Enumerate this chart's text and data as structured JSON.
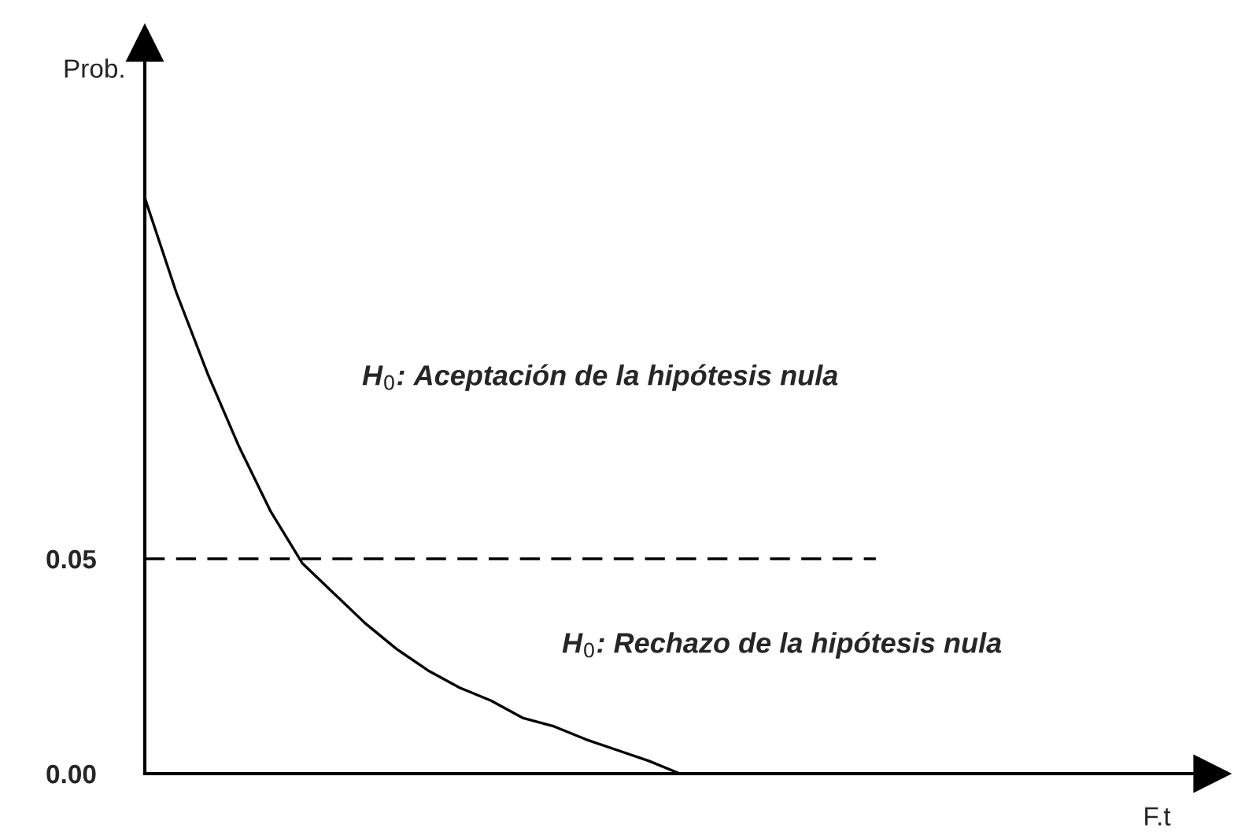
{
  "chart_data": {
    "type": "line",
    "xlabel": "F.t",
    "ylabel": "Prob.",
    "categories": [
      null,
      null,
      null,
      null,
      null,
      null,
      null,
      null,
      null,
      null,
      null,
      null,
      null,
      null,
      null,
      null,
      null,
      null,
      null,
      null,
      null,
      null,
      null,
      null,
      null,
      null,
      null,
      null,
      null,
      null,
      null,
      null,
      null,
      null,
      null
    ],
    "series": [
      {
        "color": "#000000",
        "values": [
          0.134,
          0.112,
          0.093,
          0.076,
          0.061,
          0.049,
          0.042,
          0.035,
          0.029,
          0.024,
          0.02,
          0.017,
          0.013,
          0.011,
          0.008,
          0.0055,
          0.003,
          0.0,
          null,
          null,
          null,
          null,
          null,
          null,
          null,
          null,
          null,
          null,
          null,
          null,
          null,
          null,
          null,
          null,
          null
        ]
      }
    ],
    "ylim": [
      0,
      0.17
    ],
    "yticks": [
      {
        "value": 0.0,
        "label": "0.00"
      },
      {
        "value": 0.05,
        "label": "0.05"
      }
    ],
    "ref_lines": [
      {
        "axis": "y",
        "value": 0.05,
        "line_style": "dashed",
        "color": "#000000"
      }
    ],
    "annotations": [
      "H$_{0}$: Aceptación de la hipótesis nula",
      "H$_{0}$: Rechazo de la hipótesis nula"
    ]
  }
}
